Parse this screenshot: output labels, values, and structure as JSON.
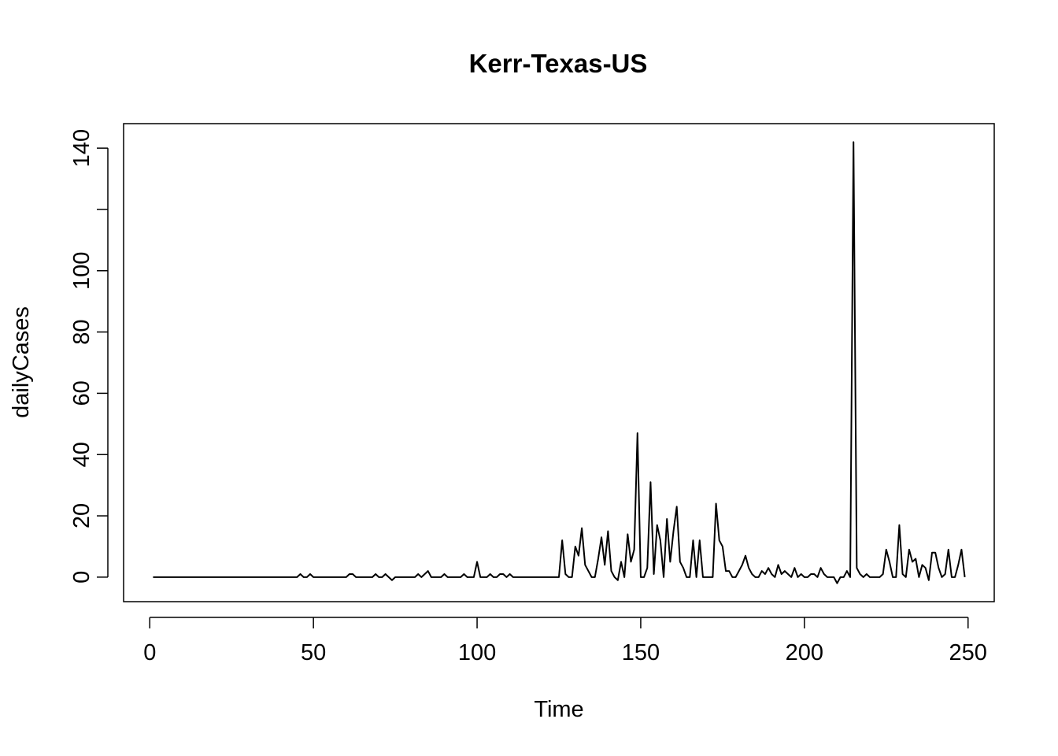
{
  "chart_data": {
    "type": "line",
    "title": "Kerr-Texas-US",
    "xlabel": "Time",
    "ylabel": "dailyCases",
    "xlim": [
      -8,
      258
    ],
    "ylim": [
      -8,
      148
    ],
    "x_ticks": [
      0,
      50,
      100,
      150,
      200,
      250
    ],
    "x_tick_labels": [
      "0",
      "50",
      "100",
      "150",
      "200",
      "250"
    ],
    "y_ticks": [
      0,
      20,
      40,
      60,
      80,
      100,
      120,
      140
    ],
    "y_tick_labels": [
      "0",
      "20",
      "40",
      "60",
      "80",
      "100",
      "",
      "140"
    ],
    "grid": false,
    "legend": "none",
    "line_color": "#000000",
    "series": [
      {
        "points": [
          [
            1,
            0
          ],
          [
            45,
            0
          ],
          [
            46,
            1
          ],
          [
            47,
            0
          ],
          [
            48,
            0
          ],
          [
            49,
            1
          ],
          [
            50,
            0
          ],
          [
            60,
            0
          ],
          [
            61,
            1
          ],
          [
            62,
            1
          ],
          [
            63,
            0
          ],
          [
            68,
            0
          ],
          [
            69,
            1
          ],
          [
            70,
            0
          ],
          [
            71,
            0
          ],
          [
            72,
            1
          ],
          [
            73,
            0
          ],
          [
            74,
            -1
          ],
          [
            75,
            0
          ],
          [
            81,
            0
          ],
          [
            82,
            1
          ],
          [
            83,
            0
          ],
          [
            84,
            1
          ],
          [
            85,
            2
          ],
          [
            86,
            0
          ],
          [
            89,
            0
          ],
          [
            90,
            1
          ],
          [
            91,
            0
          ],
          [
            95,
            0
          ],
          [
            96,
            1
          ],
          [
            97,
            0
          ],
          [
            99,
            0
          ],
          [
            100,
            5
          ],
          [
            101,
            0
          ],
          [
            103,
            0
          ],
          [
            104,
            1
          ],
          [
            105,
            0
          ],
          [
            106,
            0
          ],
          [
            107,
            1
          ],
          [
            108,
            1
          ],
          [
            109,
            0
          ],
          [
            110,
            1
          ],
          [
            111,
            0
          ],
          [
            125,
            0
          ],
          [
            126,
            12
          ],
          [
            127,
            1
          ],
          [
            128,
            0
          ],
          [
            129,
            0
          ],
          [
            130,
            10
          ],
          [
            131,
            7
          ],
          [
            132,
            16
          ],
          [
            133,
            4
          ],
          [
            134,
            2
          ],
          [
            135,
            0
          ],
          [
            136,
            0
          ],
          [
            137,
            6
          ],
          [
            138,
            13
          ],
          [
            139,
            4
          ],
          [
            140,
            15
          ],
          [
            141,
            2
          ],
          [
            142,
            0
          ],
          [
            143,
            -1
          ],
          [
            144,
            5
          ],
          [
            145,
            0
          ],
          [
            146,
            14
          ],
          [
            147,
            5
          ],
          [
            148,
            9
          ],
          [
            149,
            47
          ],
          [
            150,
            0
          ],
          [
            151,
            0
          ],
          [
            152,
            3
          ],
          [
            153,
            31
          ],
          [
            154,
            1
          ],
          [
            155,
            17
          ],
          [
            156,
            12
          ],
          [
            157,
            0
          ],
          [
            158,
            19
          ],
          [
            159,
            5
          ],
          [
            160,
            15
          ],
          [
            161,
            23
          ],
          [
            162,
            5
          ],
          [
            163,
            3
          ],
          [
            164,
            0
          ],
          [
            165,
            0
          ],
          [
            166,
            12
          ],
          [
            167,
            0
          ],
          [
            168,
            12
          ],
          [
            169,
            0
          ],
          [
            172,
            0
          ],
          [
            173,
            24
          ],
          [
            174,
            12
          ],
          [
            175,
            10
          ],
          [
            176,
            2
          ],
          [
            177,
            2
          ],
          [
            178,
            0
          ],
          [
            179,
            0
          ],
          [
            181,
            4
          ],
          [
            182,
            7
          ],
          [
            183,
            3
          ],
          [
            184,
            1
          ],
          [
            185,
            0
          ],
          [
            186,
            0
          ],
          [
            187,
            2
          ],
          [
            188,
            1
          ],
          [
            189,
            3
          ],
          [
            190,
            1
          ],
          [
            191,
            0
          ],
          [
            192,
            4
          ],
          [
            193,
            1
          ],
          [
            194,
            2
          ],
          [
            195,
            1
          ],
          [
            196,
            0
          ],
          [
            197,
            3
          ],
          [
            198,
            0
          ],
          [
            199,
            1
          ],
          [
            200,
            0
          ],
          [
            201,
            0
          ],
          [
            202,
            1
          ],
          [
            203,
            1
          ],
          [
            204,
            0
          ],
          [
            205,
            3
          ],
          [
            206,
            1
          ],
          [
            207,
            0
          ],
          [
            209,
            0
          ],
          [
            210,
            -2
          ],
          [
            211,
            0
          ],
          [
            212,
            0
          ],
          [
            213,
            2
          ],
          [
            214,
            0
          ],
          [
            215,
            142
          ],
          [
            216,
            3
          ],
          [
            217,
            1
          ],
          [
            218,
            0
          ],
          [
            219,
            1
          ],
          [
            220,
            0
          ],
          [
            223,
            0
          ],
          [
            224,
            1
          ],
          [
            225,
            9
          ],
          [
            226,
            5
          ],
          [
            227,
            0
          ],
          [
            228,
            0
          ],
          [
            229,
            17
          ],
          [
            230,
            1
          ],
          [
            231,
            0
          ],
          [
            232,
            9
          ],
          [
            233,
            5
          ],
          [
            234,
            6
          ],
          [
            235,
            0
          ],
          [
            236,
            4
          ],
          [
            237,
            3
          ],
          [
            238,
            -1
          ],
          [
            239,
            8
          ],
          [
            240,
            8
          ],
          [
            241,
            3
          ],
          [
            242,
            0
          ],
          [
            243,
            1
          ],
          [
            244,
            9
          ],
          [
            245,
            0
          ],
          [
            246,
            0
          ],
          [
            247,
            4
          ],
          [
            248,
            9
          ],
          [
            249,
            0
          ]
        ]
      }
    ]
  }
}
